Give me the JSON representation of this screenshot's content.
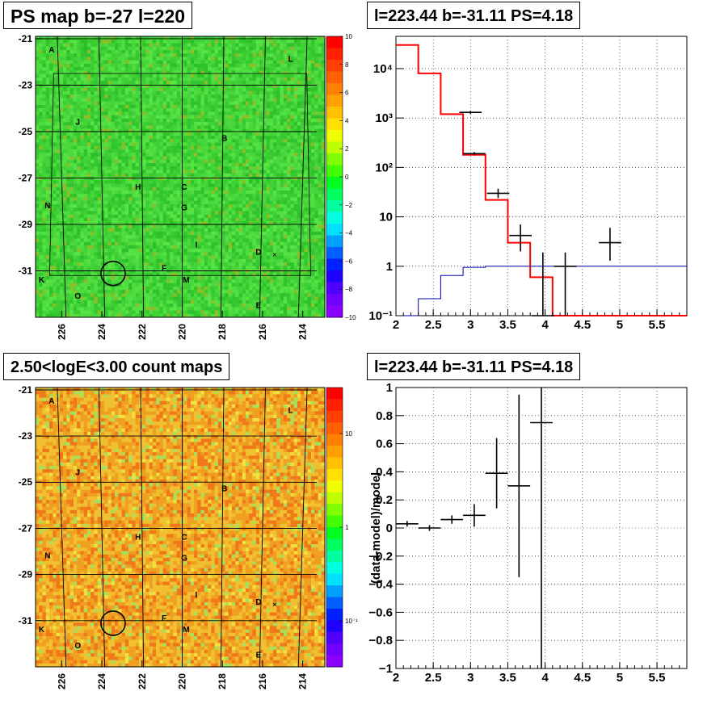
{
  "colors": {
    "map_green": "#3ccc3c",
    "count_orange": "#f0a828",
    "model_red": "#ff0000",
    "diffuse_blue": "#0000aa",
    "data_black": "#000000"
  },
  "source_labels": [
    {
      "id": "A",
      "l": 226.5,
      "b": -21.6
    },
    {
      "id": "L",
      "l": 214.6,
      "b": -22.0
    },
    {
      "id": "J",
      "l": 225.2,
      "b": -24.7
    },
    {
      "id": "B",
      "l": 217.9,
      "b": -25.4
    },
    {
      "id": "H",
      "l": 222.2,
      "b": -27.5
    },
    {
      "id": "C",
      "l": 219.9,
      "b": -27.5
    },
    {
      "id": "G",
      "l": 219.9,
      "b": -28.4
    },
    {
      "id": "N",
      "l": 226.7,
      "b": -28.3
    },
    {
      "id": "I",
      "l": 219.3,
      "b": -30.0
    },
    {
      "id": "D",
      "l": 216.2,
      "b": -30.3
    },
    {
      "id": "F",
      "l": 220.9,
      "b": -31.0
    },
    {
      "id": "M",
      "l": 219.8,
      "b": -31.5
    },
    {
      "id": "K",
      "l": 227.0,
      "b": -31.5
    },
    {
      "id": "O",
      "l": 225.2,
      "b": -32.2
    },
    {
      "id": "E",
      "l": 216.2,
      "b": -32.6
    }
  ],
  "marker": {
    "l": 223.44,
    "b": -31.11
  },
  "cross_marker": {
    "l": 215.4,
    "b": -30.3
  },
  "panels": [
    {
      "title": "PS map b=-27 l=220",
      "chart_data": {
        "type": "heatmap",
        "xlabel": "",
        "ylabel": "",
        "x_ticks": [
          "226",
          "224",
          "222",
          "220",
          "218",
          "216",
          "214"
        ],
        "x_tick_values": [
          226,
          224,
          222,
          220,
          218,
          216,
          214
        ],
        "y_ticks": [
          "-21",
          "-23",
          "-25",
          "-27",
          "-29",
          "-31"
        ],
        "y_tick_values": [
          -21,
          -23,
          -25,
          -27,
          -29,
          -31
        ],
        "xlim": [
          227.3,
          212.9
        ],
        "ylim": [
          -33.0,
          -20.9
        ],
        "colorbar": {
          "scale": "linear",
          "range": [
            -10,
            10
          ],
          "ticks": [
            "10",
            "8",
            "6",
            "4",
            "2",
            "0",
            "−2",
            "−4",
            "−6",
            "−8",
            "−10"
          ]
        }
      }
    },
    {
      "title": "l=223.44 b=-31.11 PS=4.18",
      "chart_data": {
        "type": "line",
        "xlabel": "",
        "ylabel": "",
        "x_ticks": [
          "2",
          "2.5",
          "3",
          "3.5",
          "4",
          "4.5",
          "5",
          "5.5"
        ],
        "y_ticks": [
          "10⁻¹",
          "1",
          "10",
          "10²",
          "10³",
          "10⁴"
        ],
        "y_scale": "log",
        "xlim": [
          2.0,
          5.9
        ],
        "ylim": [
          0.1,
          45000
        ],
        "grid": true,
        "bin_edges": [
          2.0,
          2.3,
          2.6,
          2.9,
          3.2,
          3.5,
          3.8,
          4.1,
          4.4,
          4.7,
          5.0,
          5.3,
          5.6,
          5.9
        ],
        "series": [
          {
            "role": "total_model",
            "color": "#ff0000",
            "values": [
              30000,
              8000,
              1200,
              180,
              22,
              3.0,
              0.6,
              0.1,
              0.1,
              0.1,
              0.1,
              0.1,
              0.1
            ]
          },
          {
            "role": "diffuse_model",
            "color": "#0000aa",
            "values": [
              0.1,
              0.22,
              0.65,
              0.95,
              1.0,
              1.0,
              1.0,
              1.0,
              1.0,
              1.0,
              1.0,
              1.0,
              1.0
            ]
          },
          {
            "role": "data",
            "color": "#000000",
            "points": [
              {
                "x": 3.0,
                "y": 1300,
                "xerr": 0.15,
                "ylo": 1220,
                "yhi": 1380
              },
              {
                "x": 3.05,
                "y": 190,
                "xerr": 0.15,
                "ylo": 175,
                "yhi": 205
              },
              {
                "x": 3.37,
                "y": 30,
                "xerr": 0.15,
                "ylo": 24,
                "yhi": 37
              },
              {
                "x": 3.67,
                "y": 4.2,
                "xerr": 0.15,
                "ylo": 2.0,
                "yhi": 7.0
              },
              {
                "x": 3.97,
                "y": 0.1,
                "xerr": 0.15,
                "ylo": 0.1,
                "yhi": 1.9
              },
              {
                "x": 4.27,
                "y": 1.0,
                "xerr": 0.15,
                "ylo": 0.1,
                "yhi": 1.9
              },
              {
                "x": 4.87,
                "y": 3.0,
                "xerr": 0.15,
                "ylo": 1.3,
                "yhi": 6.0
              }
            ]
          }
        ]
      }
    },
    {
      "title": "2.50<logE<3.00 count maps",
      "chart_data": {
        "type": "heatmap",
        "xlabel": "",
        "ylabel": "",
        "x_ticks": [
          "226",
          "224",
          "222",
          "220",
          "218",
          "216",
          "214"
        ],
        "x_tick_values": [
          226,
          224,
          222,
          220,
          218,
          216,
          214
        ],
        "y_ticks": [
          "-21",
          "-23",
          "-25",
          "-27",
          "-29",
          "-31"
        ],
        "y_tick_values": [
          -21,
          -23,
          -25,
          -27,
          -29,
          -31
        ],
        "xlim": [
          227.3,
          212.9
        ],
        "ylim": [
          -33.0,
          -20.9
        ],
        "colorbar": {
          "scale": "log",
          "ticks": [
            "10",
            "1",
            "10⁻¹"
          ]
        }
      }
    },
    {
      "title": "l=223.44 b=-31.11 PS=4.18",
      "chart_data": {
        "type": "scatter",
        "xlabel": "",
        "ylabel": "(data-model)/model",
        "x_ticks": [
          "2",
          "2.5",
          "3",
          "3.5",
          "4",
          "4.5",
          "5",
          "5.5"
        ],
        "y_ticks": [
          "1",
          "0.8",
          "0.6",
          "0.4",
          "0.2",
          "0",
          "−0.2",
          "−0.4",
          "−0.6",
          "−0.8",
          "−1"
        ],
        "xlim": [
          2.0,
          5.9
        ],
        "ylim": [
          -1.0,
          1.0
        ],
        "grid": true,
        "points": [
          {
            "x": 2.15,
            "y": 0.03,
            "xerr": 0.15,
            "yerr": 0.02
          },
          {
            "x": 2.45,
            "y": 0.0,
            "xerr": 0.15,
            "yerr": 0.02
          },
          {
            "x": 2.75,
            "y": 0.06,
            "xerr": 0.15,
            "yerr": 0.03
          },
          {
            "x": 3.05,
            "y": 0.09,
            "xerr": 0.15,
            "yerr": 0.08
          },
          {
            "x": 3.35,
            "y": 0.39,
            "xerr": 0.15,
            "yerr": 0.25
          },
          {
            "x": 3.65,
            "y": 0.3,
            "xerr": 0.15,
            "yerr": 0.65
          },
          {
            "x": 3.95,
            "y": 0.75,
            "xerr": 0.15,
            "yerr": 1.75
          }
        ]
      }
    }
  ]
}
